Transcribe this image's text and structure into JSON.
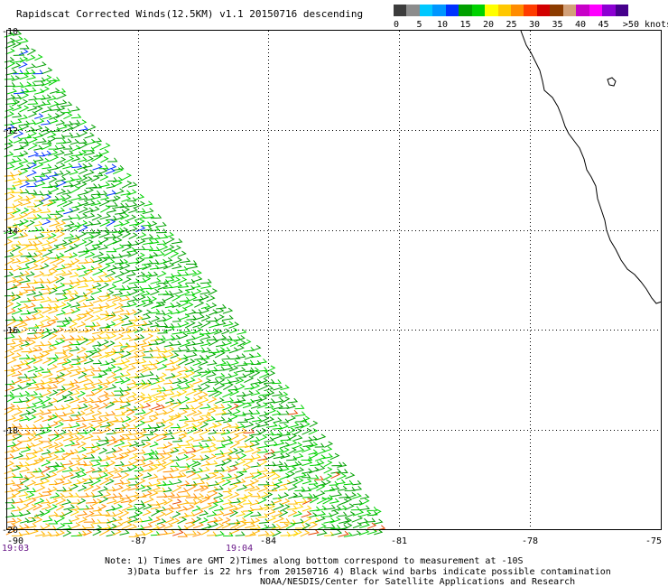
{
  "title": "Rapidscat Corrected Winds(12.5KM) v1.1 20150716 descending",
  "legend": {
    "colors": [
      "#3c3c3c",
      "#8c8c8c",
      "#00c8ff",
      "#0096ff",
      "#0032ff",
      "#00a000",
      "#00d200",
      "#ffff00",
      "#ffc800",
      "#ff8c00",
      "#ff3c00",
      "#d20000",
      "#8c3c00",
      "#d2a078",
      "#c800c8",
      "#ff00ff",
      "#8c00d2",
      "#46008c"
    ],
    "labels": [
      "0",
      "5",
      "10",
      "15",
      "20",
      "25",
      "30",
      "35",
      "40",
      "45",
      ">50 knots"
    ]
  },
  "axes": {
    "lon_ticks": [
      "-90",
      "-87",
      "-84",
      "-81",
      "-78",
      "-75"
    ],
    "lat_ticks": [
      "-10",
      "-12",
      "-14",
      "-16",
      "-18",
      "-20"
    ]
  },
  "times": {
    "left": "19:03",
    "center": "19:04"
  },
  "notes": {
    "line1": "Note: 1) Times are GMT 2)Times along bottom correspond to measurement at -10S",
    "line2": "3)Data buffer is 22 hrs from 20150716 4) Black wind barbs indicate possible contamination",
    "line3": "NOAA/NESDIS/Center for Satellite Applications and Research"
  }
}
